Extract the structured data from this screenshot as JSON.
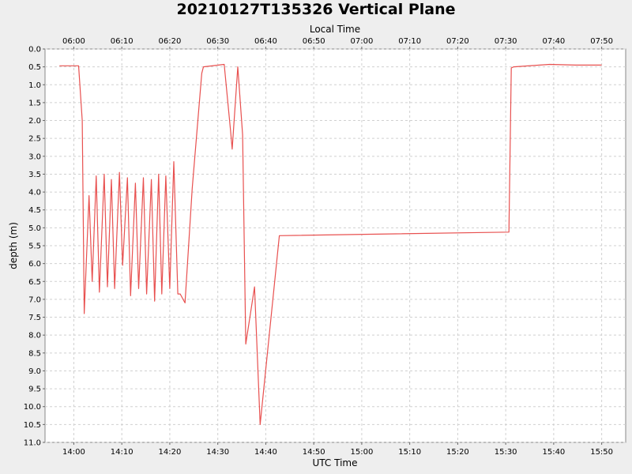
{
  "chart_data": {
    "type": "line",
    "title": "20210127T135326 Vertical Plane",
    "xlabel": "UTC Time",
    "x2label": "Local Time",
    "ylabel": "depth (m)",
    "xlim": [
      "13:54",
      "15:55"
    ],
    "x_ticks": [
      "14:00",
      "14:10",
      "14:20",
      "14:30",
      "14:40",
      "14:50",
      "15:00",
      "15:10",
      "15:20",
      "15:30",
      "15:40",
      "15:50"
    ],
    "x2_ticks": [
      "06:00",
      "06:10",
      "06:20",
      "06:30",
      "06:40",
      "06:50",
      "07:00",
      "07:10",
      "07:20",
      "07:30",
      "07:40",
      "07:50"
    ],
    "ylim": [
      0,
      11
    ],
    "y_inverted": true,
    "y_ticks": [
      "0.0",
      "0.5",
      "1.0",
      "1.5",
      "2.0",
      "2.5",
      "3.0",
      "3.5",
      "4.0",
      "4.5",
      "5.0",
      "5.5",
      "6.0",
      "6.5",
      "7.0",
      "7.5",
      "8.0",
      "8.5",
      "9.0",
      "9.5",
      "10.0",
      "10.5",
      "11.0"
    ],
    "grid": true,
    "line_color": "#e8504f",
    "series": [
      {
        "x": [
          "13:57:00",
          "14:01:00",
          "14:01:45",
          "14:02:10",
          "14:03:10",
          "14:03:50",
          "14:04:40",
          "14:05:20",
          "14:06:20",
          "14:07:00",
          "14:07:50",
          "14:08:30",
          "14:09:30",
          "14:10:10",
          "14:11:10",
          "14:11:50",
          "14:12:50",
          "14:13:30",
          "14:14:30",
          "14:15:10",
          "14:16:10",
          "14:16:50",
          "14:17:40",
          "14:18:20",
          "14:19:10",
          "14:20:00",
          "14:20:50",
          "14:21:40",
          "14:22:10",
          "14:23:10",
          "14:24:40",
          "14:26:40",
          "14:27:00",
          "14:31:20",
          "14:32:40",
          "14:33:00",
          "14:34:10",
          "14:35:10",
          "14:35:50",
          "14:37:40",
          "14:38:50",
          "14:42:50",
          "15:30:40",
          "15:31:10",
          "15:31:40",
          "15:39:10",
          "15:44:40",
          "15:50:00"
        ],
        "y": [
          0.47,
          0.47,
          2.0,
          7.4,
          4.1,
          6.5,
          3.55,
          6.8,
          3.5,
          6.65,
          3.65,
          6.7,
          3.45,
          6.05,
          3.6,
          6.9,
          3.75,
          6.7,
          3.6,
          6.85,
          3.65,
          7.05,
          3.5,
          6.85,
          3.55,
          6.7,
          3.15,
          6.85,
          6.85,
          7.1,
          3.9,
          0.68,
          0.5,
          0.43,
          2.3,
          2.8,
          0.5,
          2.4,
          8.25,
          6.65,
          10.5,
          5.22,
          5.12,
          0.53,
          0.5,
          0.43,
          0.45,
          0.45
        ]
      }
    ]
  }
}
